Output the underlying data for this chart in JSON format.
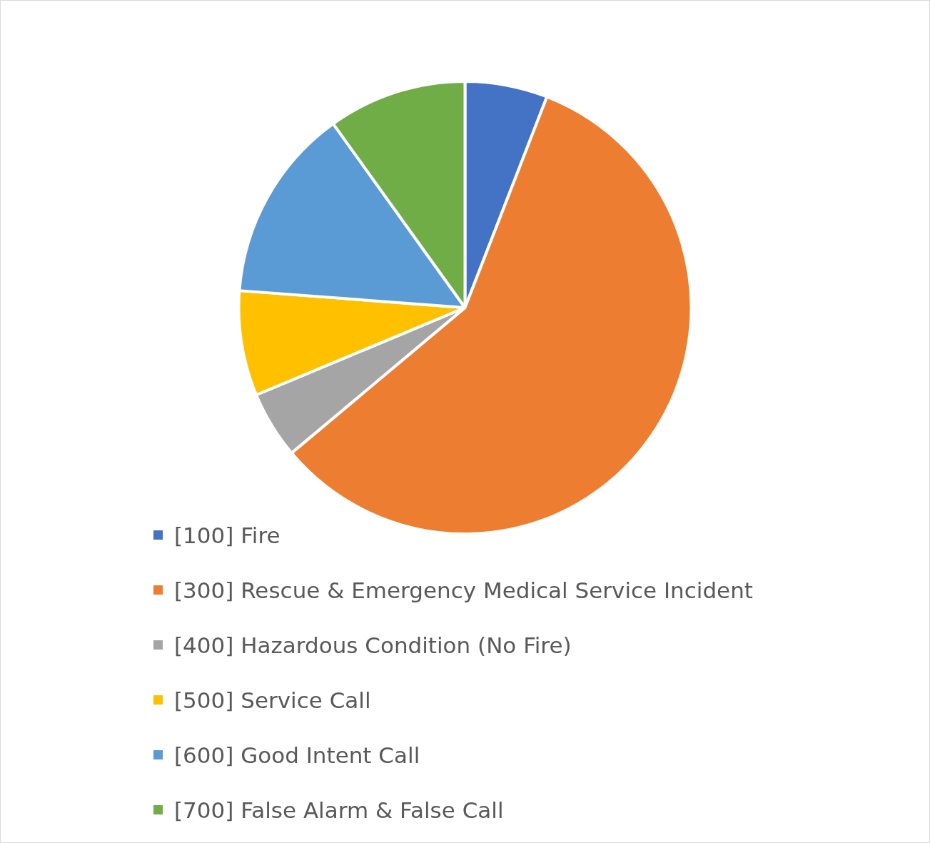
{
  "chart_data": {
    "type": "pie",
    "categories": [
      "[100] Fire",
      "[300] Rescue & Emergency Medical Service Incident",
      "[400] Hazardous Condition (No Fire)",
      "[500] Service Call",
      "[600] Good Intent Call",
      "[700] False Alarm & False Call"
    ],
    "values": [
      5.9,
      58.0,
      4.8,
      7.5,
      13.9,
      9.9
    ],
    "colors": [
      "#4472c4",
      "#ed7d31",
      "#a5a5a5",
      "#ffc000",
      "#5b9bd5",
      "#70ad47"
    ],
    "legend": "bottom"
  }
}
